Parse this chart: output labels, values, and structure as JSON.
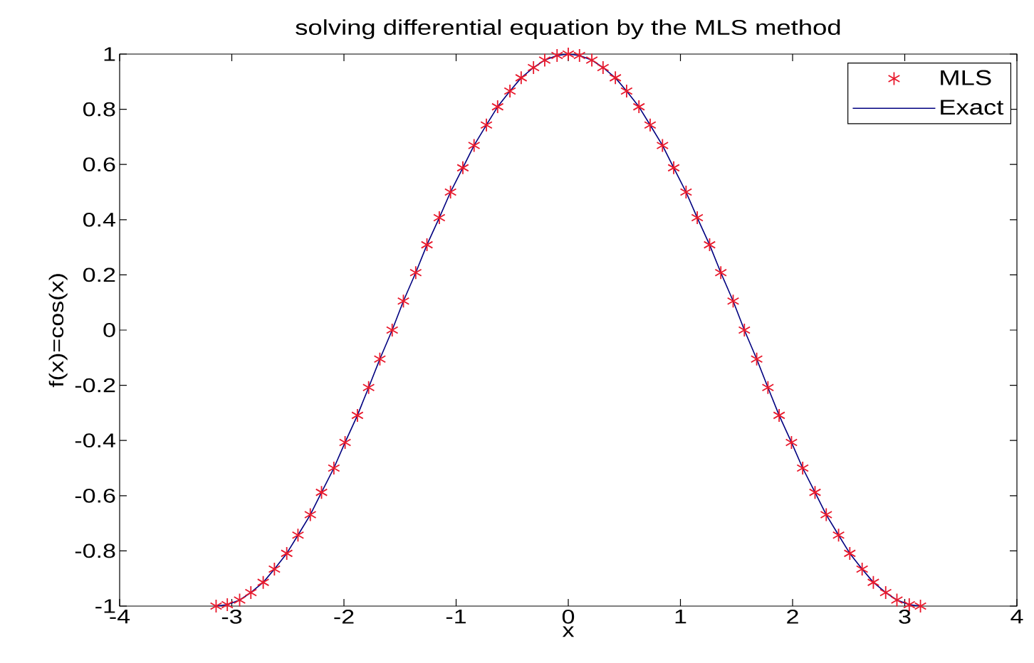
{
  "chart_data": {
    "type": "line",
    "title": "solving differential equation by the MLS method",
    "xlabel": "x",
    "ylabel": "f(x)=cos(x)",
    "x": [
      -3.14,
      -3.04,
      -2.93,
      -2.83,
      -2.72,
      -2.62,
      -2.51,
      -2.41,
      -2.3,
      -2.2,
      -2.09,
      -1.99,
      -1.88,
      -1.78,
      -1.68,
      -1.57,
      -1.47,
      -1.36,
      -1.26,
      -1.15,
      -1.05,
      -0.94,
      -0.84,
      -0.73,
      -0.63,
      -0.52,
      -0.42,
      -0.31,
      -0.21,
      -0.1,
      0,
      0.1,
      0.21,
      0.31,
      0.42,
      0.52,
      0.63,
      0.73,
      0.84,
      0.94,
      1.05,
      1.15,
      1.26,
      1.36,
      1.47,
      1.57,
      1.68,
      1.78,
      1.88,
      1.99,
      2.09,
      2.2,
      2.3,
      2.41,
      2.51,
      2.62,
      2.72,
      2.83,
      2.93,
      3.04,
      3.14
    ],
    "series": [
      {
        "name": "MLS",
        "type": "scatter",
        "marker": "cross",
        "color": "#e8192c",
        "values": [
          -1,
          -0.995,
          -0.978,
          -0.951,
          -0.914,
          -0.866,
          -0.809,
          -0.743,
          -0.669,
          -0.588,
          -0.5,
          -0.407,
          -0.309,
          -0.208,
          -0.105,
          0,
          0.105,
          0.208,
          0.309,
          0.407,
          0.5,
          0.588,
          0.669,
          0.743,
          0.809,
          0.866,
          0.914,
          0.951,
          0.978,
          0.995,
          1,
          0.995,
          0.978,
          0.951,
          0.914,
          0.866,
          0.809,
          0.743,
          0.669,
          0.588,
          0.5,
          0.407,
          0.309,
          0.208,
          0.105,
          0,
          -0.105,
          -0.208,
          -0.309,
          -0.407,
          -0.5,
          -0.588,
          -0.669,
          -0.743,
          -0.809,
          -0.866,
          -0.914,
          -0.951,
          -0.978,
          -0.995,
          -1
        ]
      },
      {
        "name": "Exact",
        "line_style": "solid",
        "marker": "none",
        "color": "#000080",
        "values": [
          -1,
          -0.995,
          -0.978,
          -0.951,
          -0.914,
          -0.866,
          -0.809,
          -0.743,
          -0.669,
          -0.588,
          -0.5,
          -0.407,
          -0.309,
          -0.208,
          -0.105,
          0,
          0.105,
          0.208,
          0.309,
          0.407,
          0.5,
          0.588,
          0.669,
          0.743,
          0.809,
          0.866,
          0.914,
          0.951,
          0.978,
          0.995,
          1,
          0.995,
          0.978,
          0.951,
          0.914,
          0.866,
          0.809,
          0.743,
          0.669,
          0.588,
          0.5,
          0.407,
          0.309,
          0.208,
          0.105,
          0,
          -0.105,
          -0.208,
          -0.309,
          -0.407,
          -0.5,
          -0.588,
          -0.669,
          -0.743,
          -0.809,
          -0.866,
          -0.914,
          -0.951,
          -0.978,
          -0.995,
          -1
        ]
      }
    ],
    "xlim": [
      -4,
      4
    ],
    "ylim": [
      -1,
      1
    ],
    "xticks": [
      -4,
      -3,
      -2,
      -1,
      0,
      1,
      2,
      3,
      4
    ],
    "yticks": [
      -1,
      -0.8,
      -0.6,
      -0.4,
      -0.2,
      0,
      0.2,
      0.4,
      0.6,
      0.8,
      1
    ],
    "legend": "top right"
  }
}
